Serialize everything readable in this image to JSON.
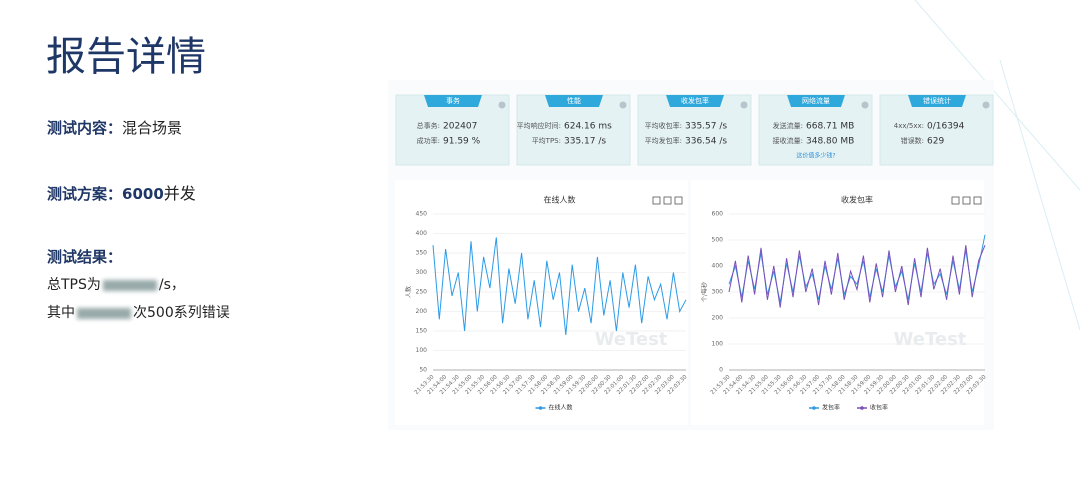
{
  "header": {
    "title": "报告详情"
  },
  "sidebar": {
    "content_label": "测试内容：",
    "content_value": "混合场景",
    "plan_label": "测试方案：",
    "plan_value": "6000",
    "plan_suffix": "并发",
    "result_label": "测试结果：",
    "result_line1_prefix": "总TPS为",
    "result_line1_suffix": "/s，",
    "result_line2_prefix": "其中",
    "result_line2_suffix": "次500系列错误"
  },
  "stats": {
    "cards": [
      {
        "title": "事务",
        "items": [
          {
            "label": "总事务:",
            "value": "202407"
          },
          {
            "label": "成功率:",
            "value": "91.59 %"
          }
        ]
      },
      {
        "title": "性能",
        "items": [
          {
            "label": "平均响应时间:",
            "value": "624.16 ms"
          },
          {
            "label": "平均TPS:",
            "value": "335.17 /s"
          }
        ]
      },
      {
        "title": "收发包率",
        "items": [
          {
            "label": "平均收包率:",
            "value": "335.57 /s"
          },
          {
            "label": "平均发包率:",
            "value": "336.54 /s"
          }
        ]
      },
      {
        "title": "网络流量",
        "items": [
          {
            "label": "发送流量:",
            "value": "668.71 MB"
          },
          {
            "label": "接收流量:",
            "value": "348.80 MB"
          }
        ],
        "link": "这价值多少钱?"
      },
      {
        "title": "错误统计",
        "items": [
          {
            "label": "4xx/5xx:",
            "value": "0/16394"
          },
          {
            "label": "错误数:",
            "value": "629"
          }
        ]
      }
    ]
  },
  "watermark": "WeTest",
  "chart_data": [
    {
      "type": "line",
      "title": "在线人数",
      "y_label": "人数",
      "categories": [
        "21:53:30",
        null,
        "21:54:00",
        null,
        "21:54:30",
        null,
        "21:55:00",
        null,
        "21:55:30",
        null,
        "21:56:00",
        null,
        "21:56:30",
        null,
        "21:57:00",
        null,
        "21:57:30",
        null,
        "21:58:00",
        null,
        "21:58:30",
        null,
        "21:59:00",
        null,
        "21:59:30",
        null,
        "22:00:00",
        null,
        "22:00:30",
        null,
        "22:01:00",
        null,
        "22:01:30",
        null,
        "22:02:00",
        null,
        "22:02:30",
        null,
        "22:03:00",
        null,
        "22:03:30"
      ],
      "series": [
        {
          "name": "在线人数",
          "color": "#2b9be8",
          "values": [
            370,
            180,
            360,
            240,
            300,
            150,
            380,
            200,
            340,
            260,
            390,
            170,
            310,
            220,
            350,
            180,
            280,
            160,
            330,
            230,
            300,
            140,
            320,
            200,
            260,
            170,
            340,
            190,
            280,
            150,
            300,
            210,
            320,
            170,
            290,
            230,
            270,
            180,
            300,
            200,
            230
          ]
        }
      ],
      "ylim": [
        50,
        450
      ],
      "yticks": [
        50,
        100,
        150,
        200,
        250,
        300,
        350,
        400,
        450
      ],
      "grid": true
    },
    {
      "type": "line",
      "title": "收发包率",
      "y_label": "个/每秒",
      "categories": [
        "21:53:30",
        null,
        "21:54:00",
        null,
        "21:54:30",
        null,
        "21:55:00",
        null,
        "21:55:30",
        null,
        "21:56:00",
        null,
        "21:56:30",
        null,
        "21:57:00",
        null,
        "21:57:30",
        null,
        "21:58:00",
        null,
        "21:58:30",
        null,
        "21:59:00",
        null,
        "21:59:30",
        null,
        "22:00:00",
        null,
        "22:00:30",
        null,
        "22:01:00",
        null,
        "22:01:30",
        null,
        "22:02:00",
        null,
        "22:02:30",
        null,
        "22:03:00",
        null,
        "22:03:30"
      ],
      "series": [
        {
          "name": "发包率",
          "color": "#2b9be8",
          "values": [
            330,
            400,
            280,
            420,
            310,
            450,
            290,
            380,
            260,
            410,
            300,
            440,
            320,
            370,
            270,
            400,
            310,
            430,
            290,
            360,
            330,
            420,
            280,
            390,
            300,
            440,
            320,
            380,
            270,
            410,
            300,
            450,
            330,
            370,
            290,
            420,
            310,
            460,
            300,
            400,
            520
          ]
        },
        {
          "name": "收包率",
          "color": "#7a4fb8",
          "values": [
            300,
            420,
            260,
            440,
            290,
            470,
            270,
            400,
            240,
            430,
            280,
            460,
            300,
            390,
            250,
            420,
            290,
            450,
            270,
            380,
            310,
            440,
            260,
            410,
            280,
            460,
            300,
            400,
            250,
            430,
            280,
            470,
            310,
            390,
            270,
            440,
            290,
            480,
            280,
            420,
            480
          ]
        }
      ],
      "ylim": [
        0,
        600
      ],
      "yticks": [
        0,
        100,
        200,
        300,
        400,
        500,
        600
      ],
      "grid": true
    }
  ]
}
